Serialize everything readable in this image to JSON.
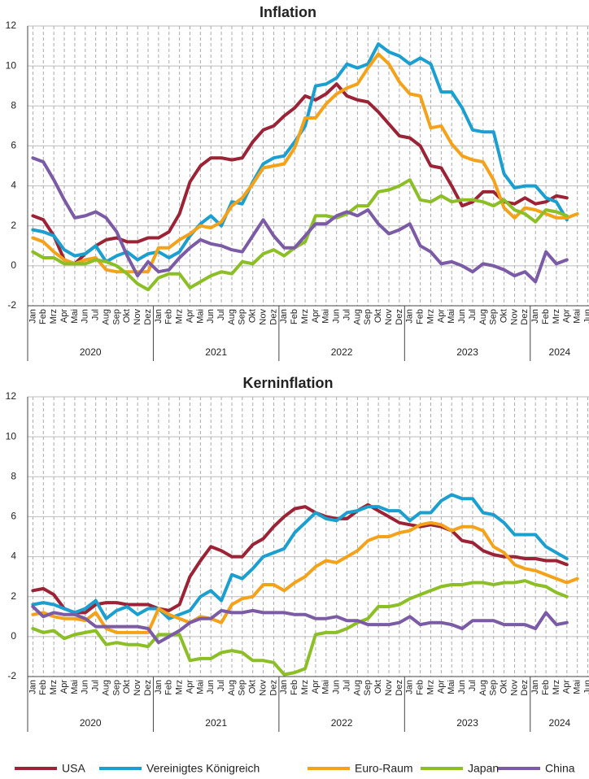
{
  "chart_data": [
    {
      "type": "line",
      "title": "Inflation",
      "categories": [
        "Jan",
        "Feb",
        "Mrz",
        "Apr",
        "Mai",
        "Jun",
        "Jul",
        "Aug",
        "Sep",
        "Okt",
        "Nov",
        "Dez",
        "Jan",
        "Feb",
        "Mrz",
        "Apr",
        "Mai",
        "Jun",
        "Jul",
        "Aug",
        "Sep",
        "Okt",
        "Nov",
        "Dez",
        "Jan",
        "Feb",
        "Mrz",
        "Apr",
        "Mai",
        "Jun",
        "Jul",
        "Aug",
        "Sep",
        "Okt",
        "Nov",
        "Dez",
        "Jan",
        "Feb",
        "Mrz",
        "Apr",
        "Mai",
        "Jun",
        "Jul",
        "Aug",
        "Sep",
        "Okt",
        "Nov",
        "Dez",
        "Jan",
        "Feb",
        "Mrz",
        "Apr",
        "Mai",
        "Jun"
      ],
      "years": [
        "2020",
        "2021",
        "2022",
        "2023",
        "2024"
      ],
      "ylim": [
        -2,
        12
      ],
      "yticks": [
        -2,
        0,
        2,
        4,
        6,
        8,
        10,
        12
      ],
      "grid": true,
      "series": [
        {
          "name": "USA",
          "color": "#9b2335",
          "values": [
            2.5,
            2.3,
            1.5,
            0.3,
            0.1,
            0.6,
            1.0,
            1.3,
            1.4,
            1.2,
            1.2,
            1.4,
            1.4,
            1.7,
            2.6,
            4.2,
            5.0,
            5.4,
            5.4,
            5.3,
            5.4,
            6.2,
            6.8,
            7.0,
            7.5,
            7.9,
            8.5,
            8.3,
            8.6,
            9.1,
            8.5,
            8.3,
            8.2,
            7.7,
            7.1,
            6.5,
            6.4,
            6.0,
            5.0,
            4.9,
            4.0,
            3.0,
            3.2,
            3.7,
            3.7,
            3.2,
            3.1,
            3.4,
            3.1,
            3.2,
            3.5,
            3.4,
            null,
            null
          ]
        },
        {
          "name": "Vereinigtes Königreich",
          "color": "#1a9fd0",
          "values": [
            1.8,
            1.7,
            1.5,
            0.8,
            0.5,
            0.6,
            1.0,
            0.2,
            0.5,
            0.7,
            0.3,
            0.6,
            0.7,
            0.4,
            0.7,
            1.5,
            2.1,
            2.5,
            2.0,
            3.2,
            3.1,
            4.2,
            5.1,
            5.4,
            5.5,
            6.2,
            7.0,
            9.0,
            9.1,
            9.4,
            10.1,
            9.9,
            10.1,
            11.1,
            10.7,
            10.5,
            10.1,
            10.4,
            10.1,
            8.7,
            8.7,
            7.9,
            6.8,
            6.7,
            6.7,
            4.6,
            3.9,
            4.0,
            4.0,
            3.4,
            3.2,
            2.3,
            null,
            null
          ]
        },
        {
          "name": "Euro-Raum",
          "color": "#f5a21b",
          "values": [
            1.4,
            1.2,
            0.7,
            0.3,
            0.1,
            0.3,
            0.4,
            -0.2,
            -0.3,
            -0.3,
            -0.3,
            -0.3,
            0.9,
            0.9,
            1.3,
            1.6,
            2.0,
            1.9,
            2.2,
            3.0,
            3.4,
            4.1,
            4.9,
            5.0,
            5.1,
            5.9,
            7.4,
            7.4,
            8.1,
            8.6,
            8.9,
            9.1,
            9.9,
            10.6,
            10.1,
            9.2,
            8.6,
            8.5,
            6.9,
            7.0,
            6.1,
            5.5,
            5.3,
            5.2,
            4.3,
            2.9,
            2.4,
            2.9,
            2.8,
            2.6,
            2.4,
            2.4,
            2.6,
            null
          ]
        },
        {
          "name": "Japan",
          "color": "#8cbf26",
          "values": [
            0.7,
            0.4,
            0.4,
            0.1,
            0.1,
            0.1,
            0.3,
            0.2,
            0.0,
            -0.4,
            -0.9,
            -1.2,
            -0.6,
            -0.4,
            -0.4,
            -1.1,
            -0.8,
            -0.5,
            -0.3,
            -0.4,
            0.2,
            0.1,
            0.6,
            0.8,
            0.5,
            0.9,
            1.2,
            2.5,
            2.5,
            2.4,
            2.6,
            3.0,
            3.0,
            3.7,
            3.8,
            4.0,
            4.3,
            3.3,
            3.2,
            3.5,
            3.2,
            3.3,
            3.3,
            3.2,
            3.0,
            3.3,
            2.8,
            2.6,
            2.2,
            2.8,
            2.7,
            2.5,
            null,
            null
          ]
        },
        {
          "name": "China",
          "color": "#7b5aa6",
          "values": [
            5.4,
            5.2,
            4.3,
            3.3,
            2.4,
            2.5,
            2.7,
            2.4,
            1.7,
            0.5,
            -0.5,
            0.2,
            -0.3,
            -0.2,
            0.4,
            0.9,
            1.3,
            1.1,
            1.0,
            0.8,
            0.7,
            1.5,
            2.3,
            1.5,
            0.9,
            0.9,
            1.5,
            2.1,
            2.1,
            2.5,
            2.7,
            2.5,
            2.8,
            2.1,
            1.6,
            1.8,
            2.1,
            1.0,
            0.7,
            0.1,
            0.2,
            0.0,
            -0.3,
            0.1,
            0.0,
            -0.2,
            -0.5,
            -0.3,
            -0.8,
            0.7,
            0.1,
            0.3,
            null,
            null
          ]
        }
      ]
    },
    {
      "type": "line",
      "title": "Kerninflation",
      "categories": [
        "Jan",
        "Feb",
        "Mrz",
        "Apr",
        "Mai",
        "Jun",
        "Jul",
        "Aug",
        "Sep",
        "Okt",
        "Nov",
        "Dez",
        "Jan",
        "Feb",
        "Mrz",
        "Apr",
        "Mai",
        "Jun",
        "Jul",
        "Aug",
        "Sep",
        "Okt",
        "Nov",
        "Dez",
        "Jan",
        "Feb",
        "Mrz",
        "Apr",
        "Mai",
        "Jun",
        "Jul",
        "Aug",
        "Sep",
        "Okt",
        "Nov",
        "Dez",
        "Jan",
        "Feb",
        "Mrz",
        "Apr",
        "Mai",
        "Jun",
        "Jul",
        "Aug",
        "Sep",
        "Okt",
        "Nov",
        "Dez",
        "Jan",
        "Feb",
        "Mrz",
        "Apr",
        "Mai",
        "Jun"
      ],
      "years": [
        "2020",
        "2021",
        "2022",
        "2023",
        "2024"
      ],
      "ylim": [
        -2,
        12
      ],
      "yticks": [
        -2,
        0,
        2,
        4,
        6,
        8,
        10,
        12
      ],
      "grid": true,
      "series": [
        {
          "name": "USA",
          "color": "#9b2335",
          "values": [
            2.3,
            2.4,
            2.1,
            1.4,
            1.2,
            1.2,
            1.6,
            1.7,
            1.7,
            1.6,
            1.6,
            1.6,
            1.4,
            1.3,
            1.6,
            3.0,
            3.8,
            4.5,
            4.3,
            4.0,
            4.0,
            4.6,
            4.9,
            5.5,
            6.0,
            6.4,
            6.5,
            6.2,
            6.0,
            5.9,
            5.9,
            6.3,
            6.6,
            6.3,
            6.0,
            5.7,
            5.6,
            5.5,
            5.6,
            5.5,
            5.3,
            4.8,
            4.7,
            4.3,
            4.1,
            4.0,
            4.0,
            3.9,
            3.9,
            3.8,
            3.8,
            3.6,
            null,
            null
          ]
        },
        {
          "name": "Vereinigtes Königreich",
          "color": "#1a9fd0",
          "values": [
            1.6,
            1.7,
            1.6,
            1.4,
            1.2,
            1.4,
            1.8,
            0.9,
            1.3,
            1.5,
            1.1,
            1.4,
            1.4,
            0.9,
            1.1,
            1.3,
            2.0,
            2.3,
            1.8,
            3.1,
            2.9,
            3.4,
            4.0,
            4.2,
            4.4,
            5.2,
            5.7,
            6.2,
            5.9,
            5.8,
            6.2,
            6.3,
            6.5,
            6.5,
            6.3,
            6.3,
            5.8,
            6.2,
            6.2,
            6.8,
            7.1,
            6.9,
            6.9,
            6.2,
            6.1,
            5.7,
            5.1,
            5.1,
            5.1,
            4.5,
            4.2,
            3.9,
            null,
            null
          ]
        },
        {
          "name": "Euro-Raum",
          "color": "#f5a21b",
          "values": [
            1.1,
            1.2,
            1.0,
            0.9,
            0.9,
            0.8,
            1.2,
            0.4,
            0.2,
            0.2,
            0.2,
            0.2,
            1.4,
            1.1,
            0.9,
            0.7,
            1.0,
            0.9,
            0.7,
            1.6,
            1.9,
            2.0,
            2.6,
            2.6,
            2.3,
            2.7,
            3.0,
            3.5,
            3.8,
            3.7,
            4.0,
            4.3,
            4.8,
            5.0,
            5.0,
            5.2,
            5.3,
            5.6,
            5.7,
            5.6,
            5.3,
            5.5,
            5.5,
            5.3,
            4.5,
            4.2,
            3.6,
            3.4,
            3.3,
            3.1,
            2.9,
            2.7,
            2.9,
            null
          ]
        },
        {
          "name": "Japan",
          "color": "#8cbf26",
          "values": [
            0.4,
            0.2,
            0.3,
            -0.1,
            0.1,
            0.2,
            0.3,
            -0.4,
            -0.3,
            -0.4,
            -0.4,
            -0.5,
            0.1,
            0.1,
            0.1,
            -1.2,
            -1.1,
            -1.1,
            -0.8,
            -0.7,
            -0.8,
            -1.2,
            -1.2,
            -1.3,
            -1.9,
            -1.8,
            -1.6,
            0.1,
            0.2,
            0.2,
            0.4,
            0.7,
            0.9,
            1.5,
            1.5,
            1.6,
            1.9,
            2.1,
            2.3,
            2.5,
            2.6,
            2.6,
            2.7,
            2.7,
            2.6,
            2.7,
            2.7,
            2.8,
            2.6,
            2.5,
            2.2,
            2.0,
            null,
            null
          ]
        },
        {
          "name": "China",
          "color": "#7b5aa6",
          "values": [
            1.5,
            1.0,
            1.2,
            1.1,
            1.1,
            0.9,
            0.5,
            0.5,
            0.5,
            0.5,
            0.5,
            0.4,
            -0.3,
            0.0,
            0.3,
            0.7,
            0.9,
            0.9,
            1.3,
            1.2,
            1.2,
            1.3,
            1.2,
            1.2,
            1.2,
            1.1,
            1.1,
            0.9,
            0.9,
            1.0,
            0.8,
            0.8,
            0.6,
            0.6,
            0.6,
            0.7,
            1.0,
            0.6,
            0.7,
            0.7,
            0.6,
            0.4,
            0.8,
            0.8,
            0.8,
            0.6,
            0.6,
            0.6,
            0.4,
            1.2,
            0.6,
            0.7,
            null,
            null
          ]
        }
      ]
    }
  ]
}
